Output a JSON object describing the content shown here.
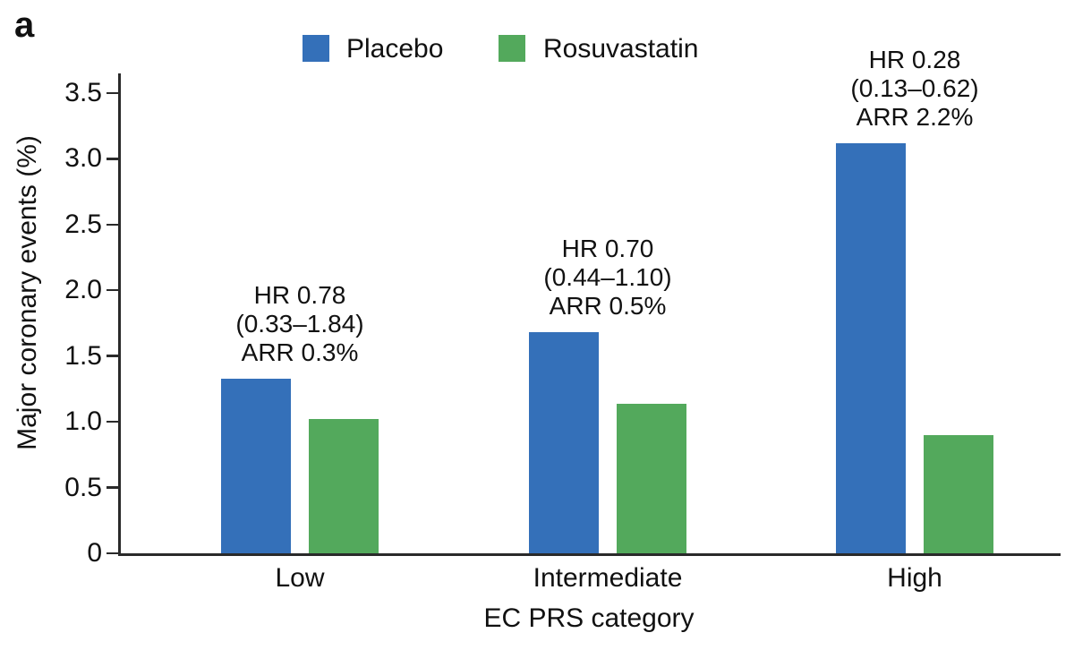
{
  "panel_label": "a",
  "legend": {
    "items": [
      {
        "label": "Placebo",
        "color": "#3470B9"
      },
      {
        "label": "Rosuvastatin",
        "color": "#53A95C"
      }
    ]
  },
  "chart_data": {
    "type": "bar",
    "title": "",
    "xlabel": "EC PRS category",
    "ylabel": "Major coronary events (%)",
    "categories": [
      "Low",
      "Intermediate",
      "High"
    ],
    "series": [
      {
        "name": "Placebo",
        "color": "#3470B9",
        "values": [
          1.33,
          1.68,
          3.12
        ]
      },
      {
        "name": "Rosuvastatin",
        "color": "#53A95C",
        "values": [
          1.02,
          1.14,
          0.9
        ]
      }
    ],
    "annotations": [
      {
        "category": "Low",
        "lines": [
          "HR 0.78",
          "(0.33–1.84)",
          "ARR 0.3%"
        ]
      },
      {
        "category": "Intermediate",
        "lines": [
          "HR 0.70",
          "(0.44–1.10)",
          "ARR 0.5%"
        ]
      },
      {
        "category": "High",
        "lines": [
          "HR 0.28",
          "(0.13–0.62)",
          "ARR 2.2%"
        ]
      }
    ],
    "ylim": [
      0,
      3.5
    ],
    "yticks": [
      "0",
      "0.5",
      "1.0",
      "1.5",
      "2.0",
      "2.5",
      "3.0",
      "3.5"
    ],
    "grid": false,
    "legend_position": "top"
  }
}
